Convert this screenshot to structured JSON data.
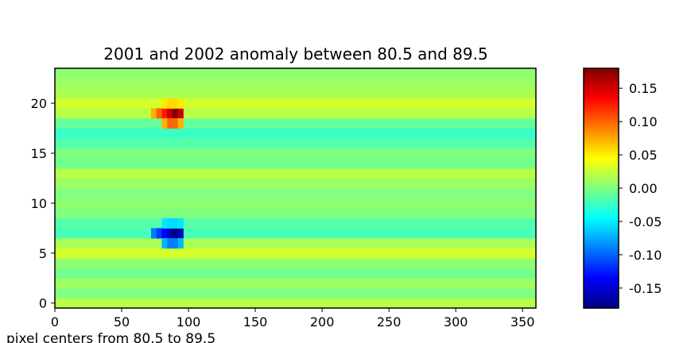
{
  "chart_data": {
    "type": "heatmap",
    "title": "2001 and 2002 anomaly between 80.5 and 89.5",
    "xlabel": "pixel centers from  80.5 to  89.5",
    "ylabel": "",
    "xlim": [
      0,
      360
    ],
    "ylim": [
      -0.5,
      23.5
    ],
    "x_ticks": [
      0,
      50,
      100,
      150,
      200,
      250,
      300,
      350
    ],
    "y_ticks": [
      0,
      5,
      10,
      15,
      20
    ],
    "colormap": "jet",
    "color_range": [
      -0.18,
      0.18
    ],
    "colorbar_ticks": [
      0.15,
      0.1,
      0.05,
      0.0,
      -0.05,
      -0.1,
      -0.15
    ],
    "colorbar_tick_labels": [
      "0.15",
      "0.10",
      "0.05",
      "0.00",
      "-0.05",
      "-0.10",
      "-0.15"
    ],
    "rows": 24,
    "row_baseline": [
      0.02,
      0.0,
      0.01,
      -0.005,
      0.005,
      0.03,
      0.015,
      -0.02,
      -0.015,
      0.0,
      0.005,
      0.0,
      0.01,
      0.02,
      -0.005,
      0.0,
      -0.015,
      -0.025,
      -0.01,
      0.02,
      0.03,
      0.015,
      0.01,
      0.005
    ],
    "anomalies": [
      {
        "row": 19,
        "x_start": 72,
        "x_end": 94,
        "peak_x": 90,
        "peak": 0.18,
        "edge": 0.06
      },
      {
        "row": 18,
        "x_start": 80,
        "x_end": 94,
        "peak_x": 88,
        "peak": 0.11,
        "edge": 0.06
      },
      {
        "row": 20,
        "x_start": 80,
        "x_end": 94,
        "peak_x": 88,
        "peak": 0.06,
        "edge": 0.05
      },
      {
        "row": 7,
        "x_start": 72,
        "x_end": 94,
        "peak_x": 90,
        "peak": -0.18,
        "edge": -0.08
      },
      {
        "row": 6,
        "x_start": 80,
        "x_end": 94,
        "peak_x": 88,
        "peak": -0.1,
        "edge": -0.06
      },
      {
        "row": 8,
        "x_start": 80,
        "x_end": 94,
        "peak_x": 88,
        "peak": -0.06,
        "edge": -0.05
      }
    ],
    "grid": false
  }
}
